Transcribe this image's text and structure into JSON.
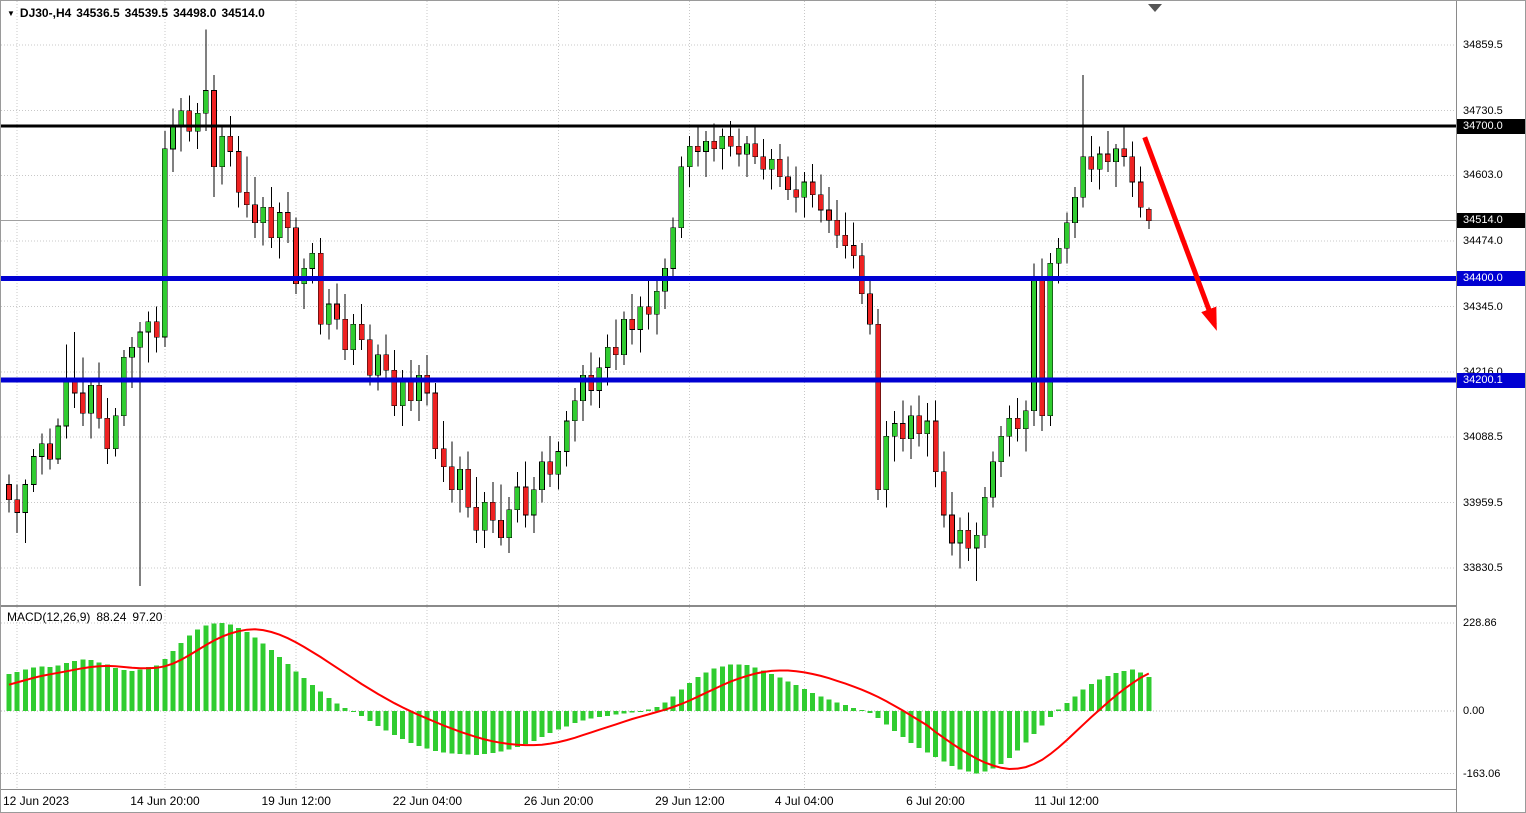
{
  "header": {
    "symbol_period": "DJ30-,H4",
    "open": "34536.5",
    "high": "34539.5",
    "low": "34498.0",
    "close": "34514.0"
  },
  "colors": {
    "bull": "#30cc30",
    "bear": "#ee2222",
    "wick": "#000000",
    "grid": "#c8c8c8",
    "hline_black": "#000000",
    "hline_blue": "#0000d2",
    "bid_line": "#a0a0a0",
    "macd_hist": "#30cc30",
    "macd_signal": "#ff0000",
    "arrow": "#ff0000",
    "badge_dark": "#000000",
    "badge_blue": "#0000d2",
    "text": "#000000"
  },
  "chart_data": {
    "type": "candlestick",
    "title": "DJ30-,H4",
    "price_axis": {
      "range": [
        33758,
        34946
      ],
      "ticks": [
        34859.5,
        34730.5,
        34603.0,
        34474.0,
        34345.0,
        34216.0,
        34088.5,
        33959.5,
        33830.5
      ]
    },
    "time_axis": {
      "labels": [
        "12 Jun 2023",
        "14 Jun 20:00",
        "19 Jun 12:00",
        "22 Jun 04:00",
        "26 Jun 20:00",
        "29 Jun 12:00",
        "4 Jul 04:00",
        "6 Jul 20:00",
        "11 Jul 12:00"
      ],
      "label_bars": [
        1,
        19,
        35,
        51,
        67,
        83,
        97,
        113,
        129
      ]
    },
    "hlines": [
      {
        "value": 34700.0,
        "label": "34700.0",
        "style": "black",
        "width": 3
      },
      {
        "value": 34400.0,
        "label": "34400.0",
        "style": "blue",
        "width": 5
      },
      {
        "value": 34200.1,
        "label": "34200.1",
        "style": "blue",
        "width": 5
      }
    ],
    "bid": {
      "value": 34514.0,
      "label": "34514.0"
    },
    "arrow": {
      "from": {
        "bar": 138.5,
        "price": 34678
      },
      "to": {
        "bar": 147,
        "price": 34310
      }
    },
    "candles": [
      [
        33995,
        34015,
        33940,
        33965
      ],
      [
        33965,
        33995,
        33900,
        33940
      ],
      [
        33940,
        34005,
        33880,
        33995
      ],
      [
        33995,
        34065,
        33980,
        34050
      ],
      [
        34050,
        34095,
        34015,
        34075
      ],
      [
        34075,
        34105,
        34025,
        34045
      ],
      [
        34045,
        34125,
        34035,
        34110
      ],
      [
        34110,
        34270,
        34085,
        34205
      ],
      [
        34205,
        34295,
        34145,
        34175
      ],
      [
        34175,
        34245,
        34110,
        34135
      ],
      [
        34135,
        34205,
        34085,
        34190
      ],
      [
        34190,
        34235,
        34105,
        34125
      ],
      [
        34125,
        34165,
        34035,
        34065
      ],
      [
        34065,
        34145,
        34050,
        34130
      ],
      [
        34130,
        34260,
        34110,
        34245
      ],
      [
        34245,
        34285,
        34185,
        34265
      ],
      [
        34265,
        34315,
        33795,
        34295
      ],
      [
        34295,
        34335,
        34235,
        34315
      ],
      [
        34315,
        34345,
        34255,
        34285
      ],
      [
        34285,
        34690,
        34265,
        34655
      ],
      [
        34655,
        34735,
        34610,
        34700
      ],
      [
        34700,
        34755,
        34650,
        34730
      ],
      [
        34730,
        34760,
        34670,
        34690
      ],
      [
        34690,
        34745,
        34655,
        34725
      ],
      [
        34725,
        34890,
        34690,
        34770
      ],
      [
        34770,
        34800,
        34560,
        34620
      ],
      [
        34620,
        34700,
        34585,
        34680
      ],
      [
        34680,
        34720,
        34620,
        34650
      ],
      [
        34650,
        34680,
        34540,
        34570
      ],
      [
        34570,
        34640,
        34520,
        34545
      ],
      [
        34545,
        34600,
        34480,
        34510
      ],
      [
        34510,
        34560,
        34465,
        34540
      ],
      [
        34540,
        34580,
        34460,
        34480
      ],
      [
        34480,
        34550,
        34440,
        34530
      ],
      [
        34530,
        34570,
        34470,
        34500
      ],
      [
        34500,
        34520,
        34370,
        34390
      ],
      [
        34390,
        34440,
        34340,
        34420
      ],
      [
        34420,
        34470,
        34390,
        34450
      ],
      [
        34450,
        34480,
        34290,
        34310
      ],
      [
        34310,
        34380,
        34280,
        34350
      ],
      [
        34350,
        34390,
        34300,
        34320
      ],
      [
        34320,
        34370,
        34240,
        34260
      ],
      [
        34260,
        34330,
        34230,
        34310
      ],
      [
        34310,
        34350,
        34260,
        34280
      ],
      [
        34280,
        34310,
        34190,
        34210
      ],
      [
        34210,
        34270,
        34180,
        34250
      ],
      [
        34250,
        34290,
        34200,
        34220
      ],
      [
        34220,
        34260,
        34130,
        34150
      ],
      [
        34150,
        34220,
        34110,
        34200
      ],
      [
        34200,
        34240,
        34140,
        34160
      ],
      [
        34160,
        34230,
        34120,
        34210
      ],
      [
        34210,
        34250,
        34150,
        34175
      ],
      [
        34175,
        34195,
        34045,
        34065
      ],
      [
        34065,
        34120,
        34000,
        34030
      ],
      [
        34030,
        34080,
        33960,
        33985
      ],
      [
        33985,
        34050,
        33940,
        34025
      ],
      [
        34025,
        34060,
        33930,
        33950
      ],
      [
        33950,
        34010,
        33880,
        33905
      ],
      [
        33905,
        33980,
        33870,
        33960
      ],
      [
        33960,
        34000,
        33900,
        33925
      ],
      [
        33925,
        33995,
        33875,
        33890
      ],
      [
        33890,
        33970,
        33860,
        33945
      ],
      [
        33945,
        34020,
        33920,
        33990
      ],
      [
        33990,
        34040,
        33910,
        33935
      ],
      [
        33935,
        34010,
        33900,
        33985
      ],
      [
        33985,
        34060,
        33960,
        34040
      ],
      [
        34040,
        34090,
        33990,
        34015
      ],
      [
        34015,
        34080,
        33985,
        34060
      ],
      [
        34060,
        34140,
        34030,
        34120
      ],
      [
        34120,
        34185,
        34080,
        34160
      ],
      [
        34160,
        34230,
        34120,
        34210
      ],
      [
        34210,
        34255,
        34150,
        34180
      ],
      [
        34180,
        34245,
        34145,
        34225
      ],
      [
        34225,
        34290,
        34190,
        34265
      ],
      [
        34265,
        34320,
        34220,
        34250
      ],
      [
        34250,
        34335,
        34230,
        34320
      ],
      [
        34320,
        34370,
        34270,
        34300
      ],
      [
        34300,
        34365,
        34255,
        34345
      ],
      [
        34345,
        34400,
        34300,
        34330
      ],
      [
        34330,
        34395,
        34290,
        34375
      ],
      [
        34375,
        34440,
        34340,
        34420
      ],
      [
        34420,
        34520,
        34400,
        34500
      ],
      [
        34500,
        34640,
        34480,
        34620
      ],
      [
        34620,
        34680,
        34580,
        34660
      ],
      [
        34660,
        34700,
        34620,
        34650
      ],
      [
        34650,
        34690,
        34600,
        34670
      ],
      [
        34670,
        34705,
        34630,
        34655
      ],
      [
        34655,
        34695,
        34615,
        34680
      ],
      [
        34680,
        34710,
        34640,
        34660
      ],
      [
        34660,
        34695,
        34620,
        34645
      ],
      [
        34645,
        34680,
        34600,
        34665
      ],
      [
        34665,
        34700,
        34625,
        34640
      ],
      [
        34640,
        34675,
        34595,
        34615
      ],
      [
        34615,
        34655,
        34575,
        34635
      ],
      [
        34635,
        34665,
        34580,
        34600
      ],
      [
        34600,
        34640,
        34555,
        34575
      ],
      [
        34575,
        34620,
        34530,
        34560
      ],
      [
        34560,
        34610,
        34520,
        34590
      ],
      [
        34590,
        34625,
        34540,
        34565
      ],
      [
        34565,
        34605,
        34510,
        34535
      ],
      [
        34535,
        34580,
        34490,
        34515
      ],
      [
        34515,
        34555,
        34460,
        34485
      ],
      [
        34485,
        34530,
        34440,
        34465
      ],
      [
        34465,
        34510,
        34420,
        34445
      ],
      [
        34445,
        34470,
        34350,
        34370
      ],
      [
        34370,
        34400,
        34290,
        34310
      ],
      [
        34310,
        34340,
        33965,
        33985
      ],
      [
        33985,
        34120,
        33950,
        34090
      ],
      [
        34090,
        34140,
        34040,
        34115
      ],
      [
        34115,
        34160,
        34060,
        34085
      ],
      [
        34085,
        34150,
        34045,
        34130
      ],
      [
        34130,
        34170,
        34070,
        34095
      ],
      [
        34095,
        34155,
        34050,
        34120
      ],
      [
        34120,
        34160,
        33990,
        34020
      ],
      [
        34020,
        34060,
        33910,
        33935
      ],
      [
        33935,
        33980,
        33855,
        33880
      ],
      [
        33880,
        33930,
        33830,
        33905
      ],
      [
        33905,
        33940,
        33845,
        33870
      ],
      [
        33870,
        33920,
        33805,
        33895
      ],
      [
        33895,
        33990,
        33870,
        33970
      ],
      [
        33970,
        34060,
        33950,
        34040
      ],
      [
        34040,
        34110,
        34010,
        34090
      ],
      [
        34090,
        34150,
        34050,
        34125
      ],
      [
        34125,
        34165,
        34080,
        34105
      ],
      [
        34105,
        34160,
        34060,
        34140
      ],
      [
        34140,
        34430,
        34110,
        34400
      ],
      [
        34400,
        34440,
        34100,
        34130
      ],
      [
        34130,
        34450,
        34110,
        34430
      ],
      [
        34430,
        34480,
        34390,
        34460
      ],
      [
        34460,
        34530,
        34430,
        34510
      ],
      [
        34510,
        34580,
        34480,
        34560
      ],
      [
        34560,
        34800,
        34540,
        34640
      ],
      [
        34640,
        34680,
        34590,
        34615
      ],
      [
        34615,
        34660,
        34575,
        34645
      ],
      [
        34645,
        34690,
        34610,
        34630
      ],
      [
        34630,
        34665,
        34580,
        34655
      ],
      [
        34655,
        34700,
        34620,
        34640
      ],
      [
        34640,
        34670,
        34560,
        34590
      ],
      [
        34590,
        34620,
        34520,
        34540
      ],
      [
        34536.5,
        34539.5,
        34498.0,
        34514.0
      ]
    ],
    "macd": {
      "title": "MACD(12,26,9)",
      "value_main": "88.24",
      "value_signal": "97.20",
      "range": [
        -203,
        270
      ],
      "ticks": [
        228.86,
        0,
        -163.06
      ],
      "histogram": [
        96,
        101,
        108,
        113,
        116,
        114,
        118,
        124,
        130,
        134,
        132,
        126,
        120,
        112,
        106,
        104,
        108,
        114,
        118,
        135,
        156,
        177,
        196,
        211,
        222,
        227,
        228.86,
        224,
        216,
        205,
        191,
        175,
        158,
        140,
        122,
        103,
        85,
        67,
        50,
        34,
        19,
        8,
        -2,
        -13,
        -26,
        -39,
        -51,
        -63,
        -73,
        -83,
        -91,
        -98,
        -104,
        -108,
        -111,
        -112,
        -113,
        -114,
        -112,
        -109,
        -105,
        -100,
        -94,
        -86,
        -78,
        -68,
        -58,
        -48,
        -40,
        -32,
        -25,
        -20,
        -16,
        -13,
        -10,
        -7,
        -4,
        -1,
        3,
        10,
        22,
        38,
        55,
        72,
        88,
        100,
        110,
        116,
        120,
        121,
        119,
        113,
        105,
        96,
        87,
        77,
        67,
        57,
        47,
        38,
        30,
        22,
        15,
        8,
        2,
        -5,
        -18,
        -35,
        -52,
        -68,
        -83,
        -96,
        -108,
        -120,
        -132,
        -143,
        -152,
        -158,
        -163.06,
        -158,
        -150,
        -138,
        -122,
        -103,
        -82,
        -60,
        -38,
        -16,
        4,
        20,
        38,
        55,
        70,
        82,
        91,
        98,
        104,
        107,
        100,
        88.24
      ],
      "signal": [
        68,
        74,
        80,
        86,
        91,
        95,
        99,
        103,
        107,
        111,
        114,
        116,
        117,
        116,
        114,
        112,
        111,
        111,
        112,
        116,
        123,
        133,
        145,
        158,
        171,
        183,
        193,
        201,
        207,
        211,
        212,
        210,
        205,
        198,
        189,
        178,
        166,
        153,
        140,
        126,
        112,
        98,
        84,
        70,
        57,
        44,
        32,
        20,
        9,
        -1,
        -11,
        -20,
        -29,
        -38,
        -46,
        -54,
        -61,
        -68,
        -74,
        -79,
        -83,
        -86,
        -88,
        -89,
        -89,
        -88,
        -85,
        -81,
        -76,
        -70,
        -63,
        -56,
        -49,
        -42,
        -35,
        -28,
        -21,
        -15,
        -9,
        -3,
        3,
        10,
        18,
        27,
        37,
        47,
        57,
        67,
        76,
        84,
        91,
        97,
        101,
        104,
        105,
        105,
        103,
        100,
        96,
        91,
        85,
        78,
        71,
        63,
        55,
        46,
        36,
        25,
        13,
        1,
        -12,
        -25,
        -38,
        -55,
        -70,
        -85,
        -99,
        -112,
        -124,
        -134,
        -142,
        -148,
        -151,
        -150,
        -146,
        -138,
        -127,
        -112,
        -95,
        -76,
        -56,
        -36,
        -16,
        3,
        22,
        40,
        57,
        72,
        86,
        97.2
      ]
    }
  }
}
